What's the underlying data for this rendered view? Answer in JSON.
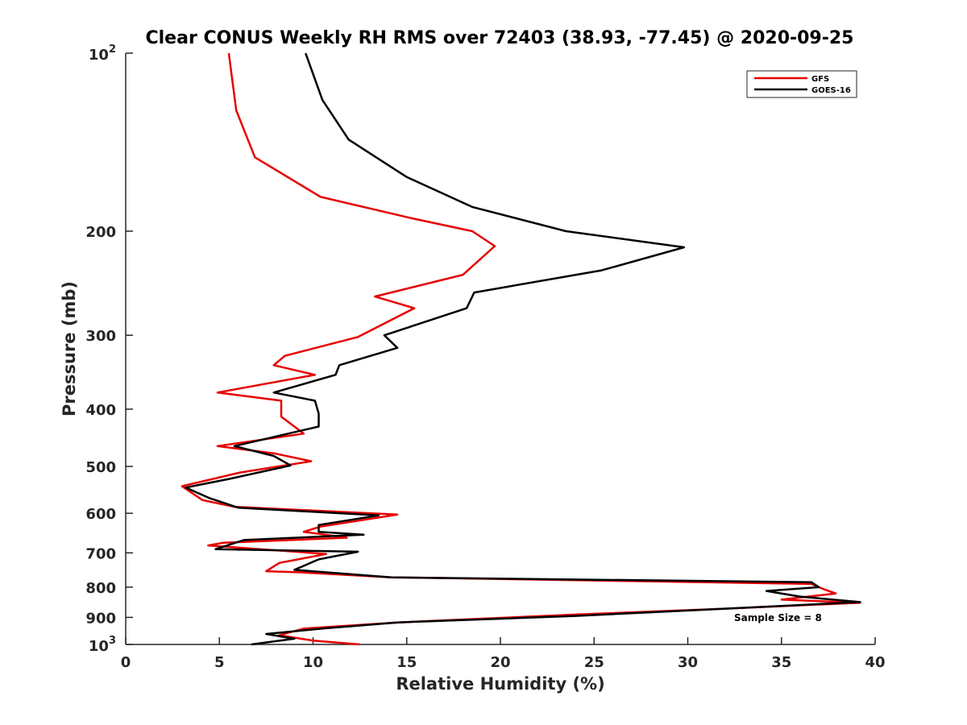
{
  "chart_data": {
    "type": "line",
    "title": "Clear CONUS Weekly RH RMS over 72403 (38.93, -77.45) @ 2020-09-25",
    "xlabel": "Relative Humidity (%)",
    "ylabel": "Pressure (mb)",
    "xlim": [
      0,
      40
    ],
    "ylim": [
      100,
      1000
    ],
    "y_scale": "log",
    "y_reversed": true,
    "grid": false,
    "legend_position": "top-right",
    "x_ticks": [
      "0",
      "5",
      "10",
      "15",
      "20",
      "25",
      "30",
      "35",
      "40"
    ],
    "y_ticks": [
      {
        "value": 100,
        "base": "10",
        "exp": "2"
      },
      {
        "value": 200,
        "label": "200"
      },
      {
        "value": 300,
        "label": "300"
      },
      {
        "value": 400,
        "label": "400"
      },
      {
        "value": 500,
        "label": "500"
      },
      {
        "value": 600,
        "label": "600"
      },
      {
        "value": 700,
        "label": "700"
      },
      {
        "value": 800,
        "label": "800"
      },
      {
        "value": 900,
        "label": "900"
      },
      {
        "value": 1000,
        "base": "10",
        "exp": "3"
      }
    ],
    "annotation": "Sample Size = 8",
    "series": [
      {
        "name": "GFS",
        "color": "#e60000",
        "points": [
          [
            5.5,
            100
          ],
          [
            5.9,
            125
          ],
          [
            6.9,
            150
          ],
          [
            10.4,
            175
          ],
          [
            15.2,
            190
          ],
          [
            18.5,
            200
          ],
          [
            19.7,
            212
          ],
          [
            18.0,
            237
          ],
          [
            13.3,
            258
          ],
          [
            15.4,
            270
          ],
          [
            12.4,
            302
          ],
          [
            8.5,
            325
          ],
          [
            7.9,
            337
          ],
          [
            10.1,
            350
          ],
          [
            4.9,
            375
          ],
          [
            8.3,
            387
          ],
          [
            8.3,
            412
          ],
          [
            9.5,
            440
          ],
          [
            4.9,
            462
          ],
          [
            7.9,
            475
          ],
          [
            9.9,
            490
          ],
          [
            6.1,
            512
          ],
          [
            3.0,
            540
          ],
          [
            4.1,
            570
          ],
          [
            5.8,
            585
          ],
          [
            14.5,
            603
          ],
          [
            10.4,
            632
          ],
          [
            9.5,
            645
          ],
          [
            11.8,
            660
          ],
          [
            5.2,
            673
          ],
          [
            4.4,
            680
          ],
          [
            10.7,
            703
          ],
          [
            8.2,
            728
          ],
          [
            7.5,
            752
          ],
          [
            9.2,
            755
          ],
          [
            14.2,
            770
          ],
          [
            36.6,
            790
          ],
          [
            37.2,
            805
          ],
          [
            37.9,
            820
          ],
          [
            35.0,
            840
          ],
          [
            39.2,
            850
          ],
          [
            32.0,
            870
          ],
          [
            24.0,
            890
          ],
          [
            14.5,
            918
          ],
          [
            9.5,
            940
          ],
          [
            8.2,
            965
          ],
          [
            10.0,
            985
          ],
          [
            12.5,
            1000
          ]
        ]
      },
      {
        "name": "GOES-16",
        "color": "#000000",
        "points": [
          [
            9.6,
            100
          ],
          [
            10.5,
            120
          ],
          [
            11.9,
            140
          ],
          [
            15.0,
            162
          ],
          [
            18.5,
            182
          ],
          [
            23.5,
            200
          ],
          [
            29.8,
            213
          ],
          [
            25.4,
            233
          ],
          [
            18.6,
            254
          ],
          [
            18.2,
            270
          ],
          [
            13.8,
            300
          ],
          [
            14.5,
            315
          ],
          [
            11.4,
            337
          ],
          [
            11.2,
            350
          ],
          [
            7.9,
            375
          ],
          [
            10.1,
            387
          ],
          [
            10.3,
            407
          ],
          [
            10.3,
            428
          ],
          [
            5.8,
            462
          ],
          [
            7.9,
            480
          ],
          [
            8.8,
            498
          ],
          [
            5.5,
            525
          ],
          [
            3.2,
            543
          ],
          [
            4.5,
            566
          ],
          [
            6.0,
            587
          ],
          [
            13.5,
            605
          ],
          [
            10.3,
            628
          ],
          [
            10.3,
            645
          ],
          [
            12.7,
            652
          ],
          [
            6.3,
            666
          ],
          [
            4.8,
            690
          ],
          [
            12.4,
            697
          ],
          [
            10.3,
            718
          ],
          [
            9.0,
            748
          ],
          [
            14.2,
            770
          ],
          [
            36.6,
            785
          ],
          [
            37.0,
            800
          ],
          [
            34.2,
            812
          ],
          [
            36.0,
            830
          ],
          [
            39.2,
            848
          ],
          [
            32.0,
            870
          ],
          [
            24.0,
            895
          ],
          [
            14.5,
            918
          ],
          [
            10.5,
            940
          ],
          [
            7.5,
            960
          ],
          [
            9.0,
            978
          ],
          [
            6.7,
            1000
          ]
        ]
      }
    ]
  }
}
